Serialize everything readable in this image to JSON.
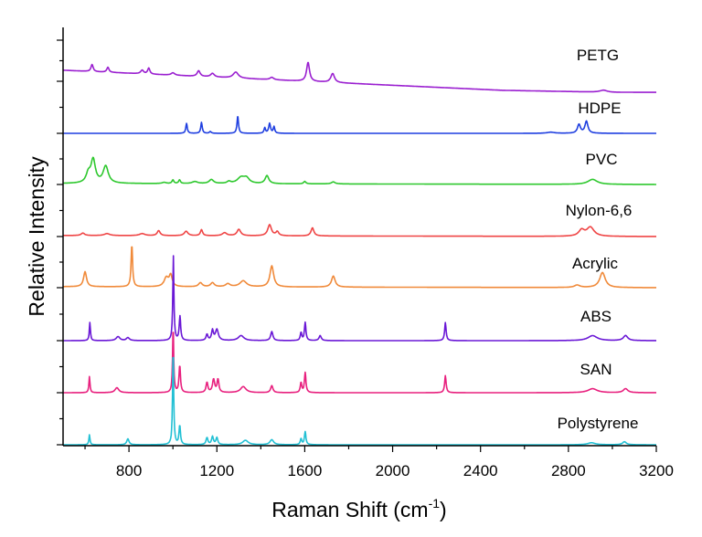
{
  "chart_data": {
    "type": "line",
    "title": "",
    "xlabel": "Raman Shift (cm",
    "xlabel_sup": "-1",
    "xlabel_end": ")",
    "ylabel": "Relative Intensity",
    "xlim": [
      500,
      3200
    ],
    "xticks": [
      800,
      1200,
      1600,
      2000,
      2400,
      2800,
      3200
    ],
    "xtick_labels": [
      "800",
      "1200",
      "1600",
      "2000",
      "2400",
      "2800",
      "3200"
    ],
    "y_ticks_labeled": false,
    "grid": false,
    "legend": "inline labels at right of each trace",
    "series": [
      {
        "name": "PETG",
        "color": "#9a1fd0",
        "baseline": [
          [
            500,
            0.55
          ],
          [
            700,
            0.45
          ],
          [
            1000,
            0.3
          ],
          [
            1300,
            0.15
          ],
          [
            1500,
            0.05
          ],
          [
            2000,
            -0.2
          ],
          [
            2500,
            -0.45
          ],
          [
            3000,
            -0.55
          ],
          [
            3200,
            -0.55
          ]
        ],
        "peaks": [
          [
            632,
            0.35,
            6
          ],
          [
            704,
            0.25,
            6
          ],
          [
            860,
            0.18,
            8
          ],
          [
            890,
            0.3,
            6
          ],
          [
            1000,
            0.12,
            10
          ],
          [
            1117,
            0.28,
            8
          ],
          [
            1180,
            0.18,
            10
          ],
          [
            1286,
            0.3,
            14
          ],
          [
            1450,
            0.12,
            10
          ],
          [
            1615,
            0.95,
            8
          ],
          [
            1727,
            0.45,
            10
          ],
          [
            2960,
            0.1,
            20
          ]
        ]
      },
      {
        "name": "HDPE",
        "color": "#1f3fe0",
        "baseline": [
          [
            500,
            0
          ],
          [
            3200,
            0
          ]
        ],
        "peaks": [
          [
            1062,
            0.45,
            4
          ],
          [
            1130,
            0.5,
            4
          ],
          [
            1170,
            0.08,
            5
          ],
          [
            1295,
            0.8,
            4
          ],
          [
            1418,
            0.25,
            4
          ],
          [
            1440,
            0.45,
            5
          ],
          [
            1460,
            0.3,
            4
          ],
          [
            2720,
            0.05,
            20
          ],
          [
            2848,
            0.4,
            8
          ],
          [
            2882,
            0.55,
            8
          ]
        ]
      },
      {
        "name": "PVC",
        "color": "#2ec82e",
        "baseline": [
          [
            500,
            0.05
          ],
          [
            3200,
            0
          ]
        ],
        "peaks": [
          [
            615,
            0.45,
            12
          ],
          [
            637,
            1.15,
            12
          ],
          [
            694,
            0.85,
            14
          ],
          [
            960,
            0.06,
            10
          ],
          [
            1000,
            0.18,
            5
          ],
          [
            1030,
            0.18,
            5
          ],
          [
            1100,
            0.1,
            15
          ],
          [
            1175,
            0.2,
            12
          ],
          [
            1255,
            0.1,
            10
          ],
          [
            1310,
            0.3,
            20
          ],
          [
            1335,
            0.25,
            15
          ],
          [
            1428,
            0.4,
            10
          ],
          [
            1600,
            0.12,
            6
          ],
          [
            1730,
            0.1,
            10
          ],
          [
            2910,
            0.25,
            25
          ]
        ]
      },
      {
        "name": "Nylon-6,6",
        "color": "#ef4545",
        "baseline": [
          [
            500,
            0.05
          ],
          [
            3200,
            0
          ]
        ],
        "peaks": [
          [
            590,
            0.12,
            10
          ],
          [
            700,
            0.1,
            15
          ],
          [
            860,
            0.1,
            15
          ],
          [
            935,
            0.25,
            8
          ],
          [
            1060,
            0.22,
            10
          ],
          [
            1130,
            0.3,
            6
          ],
          [
            1235,
            0.15,
            12
          ],
          [
            1300,
            0.32,
            10
          ],
          [
            1440,
            0.55,
            10
          ],
          [
            1475,
            0.2,
            8
          ],
          [
            1635,
            0.4,
            8
          ],
          [
            2860,
            0.3,
            15
          ],
          [
            2900,
            0.45,
            20
          ]
        ]
      },
      {
        "name": "Acrylic",
        "color": "#f08a3a",
        "baseline": [
          [
            500,
            0.05
          ],
          [
            3200,
            0
          ]
        ],
        "peaks": [
          [
            600,
            0.75,
            8
          ],
          [
            813,
            2.1,
            4
          ],
          [
            970,
            0.45,
            12
          ],
          [
            990,
            0.55,
            8
          ],
          [
            1125,
            0.2,
            10
          ],
          [
            1180,
            0.2,
            10
          ],
          [
            1250,
            0.15,
            12
          ],
          [
            1320,
            0.3,
            18
          ],
          [
            1450,
            1.05,
            10
          ],
          [
            1730,
            0.55,
            10
          ],
          [
            2840,
            0.12,
            15
          ],
          [
            2955,
            0.75,
            15
          ]
        ]
      },
      {
        "name": "ABS",
        "color": "#6a18d6",
        "baseline": [
          [
            500,
            0
          ],
          [
            3200,
            0
          ]
        ],
        "peaks": [
          [
            622,
            0.9,
            3
          ],
          [
            750,
            0.2,
            10
          ],
          [
            795,
            0.15,
            8
          ],
          [
            1002,
            4.2,
            3
          ],
          [
            1032,
            1.2,
            4
          ],
          [
            1155,
            0.3,
            5
          ],
          [
            1180,
            0.5,
            5
          ],
          [
            1200,
            0.55,
            8
          ],
          [
            1310,
            0.25,
            15
          ],
          [
            1450,
            0.45,
            6
          ],
          [
            1583,
            0.4,
            4
          ],
          [
            1602,
            0.9,
            4
          ],
          [
            1670,
            0.25,
            6
          ],
          [
            2240,
            0.9,
            4
          ],
          [
            2910,
            0.25,
            25
          ],
          [
            3060,
            0.25,
            12
          ]
        ]
      },
      {
        "name": "SAN",
        "color": "#e8207e",
        "baseline": [
          [
            500,
            0
          ],
          [
            3200,
            0
          ]
        ],
        "peaks": [
          [
            620,
            0.8,
            3
          ],
          [
            745,
            0.25,
            10
          ],
          [
            1001,
            3.3,
            3
          ],
          [
            1031,
            1.35,
            4
          ],
          [
            1155,
            0.5,
            5
          ],
          [
            1185,
            0.65,
            6
          ],
          [
            1205,
            0.65,
            5
          ],
          [
            1320,
            0.3,
            15
          ],
          [
            1450,
            0.35,
            6
          ],
          [
            1583,
            0.5,
            4
          ],
          [
            1602,
            1.0,
            4
          ],
          [
            2240,
            0.85,
            4
          ],
          [
            2910,
            0.2,
            25
          ],
          [
            3060,
            0.2,
            12
          ]
        ]
      },
      {
        "name": "Polystyrene",
        "color": "#22c0d4",
        "baseline": [
          [
            500,
            0
          ],
          [
            3200,
            0
          ]
        ],
        "peaks": [
          [
            620,
            0.5,
            3
          ],
          [
            795,
            0.3,
            6
          ],
          [
            1001,
            4.8,
            3
          ],
          [
            1031,
            0.95,
            4
          ],
          [
            1155,
            0.35,
            5
          ],
          [
            1180,
            0.4,
            5
          ],
          [
            1200,
            0.35,
            5
          ],
          [
            1330,
            0.22,
            15
          ],
          [
            1450,
            0.25,
            10
          ],
          [
            1583,
            0.3,
            4
          ],
          [
            1602,
            0.65,
            4
          ],
          [
            2905,
            0.1,
            20
          ],
          [
            3055,
            0.15,
            10
          ]
        ]
      }
    ]
  }
}
